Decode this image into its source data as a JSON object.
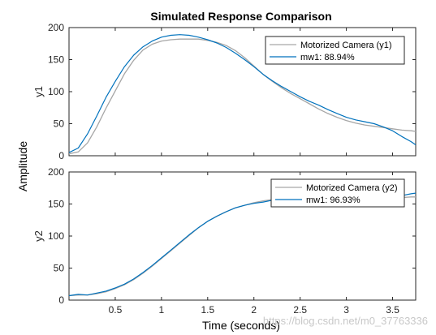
{
  "figure": {
    "title": "Simulated Response Comparison",
    "xlabel": "Time (seconds)",
    "ylabel_shared": "Amplitude",
    "watermark": "https://blog.csdn.net/m0_37763336"
  },
  "colors": {
    "measured": "#a6a6a6",
    "model": "#0072bd",
    "axes": "#262626",
    "background": "#ffffff"
  },
  "chart_data": [
    {
      "type": "line",
      "ylabel": "y1",
      "xlim": [
        0,
        3.75
      ],
      "ylim": [
        0,
        200
      ],
      "xticks": [
        "0.5",
        "1",
        "1.5",
        "2",
        "2.5",
        "3",
        "3.5"
      ],
      "yticks": [
        "0",
        "50",
        "100",
        "150",
        "200"
      ],
      "grid": false,
      "legend_placement": "top-right",
      "series": [
        {
          "name": "Motorized Camera (y1)",
          "color": "#a6a6a6",
          "x": [
            0,
            0.1,
            0.2,
            0.3,
            0.4,
            0.5,
            0.6,
            0.7,
            0.8,
            0.9,
            1.0,
            1.1,
            1.2,
            1.3,
            1.4,
            1.5,
            1.6,
            1.7,
            1.8,
            1.9,
            2.0,
            2.1,
            2.2,
            2.3,
            2.4,
            2.5,
            2.6,
            2.7,
            2.8,
            2.9,
            3.0,
            3.1,
            3.2,
            3.3,
            3.4,
            3.5,
            3.6,
            3.7,
            3.75
          ],
          "y": [
            3,
            6,
            20,
            45,
            74,
            101,
            128,
            149,
            165,
            174,
            179,
            181,
            182,
            182,
            182,
            180,
            177,
            172,
            164,
            153,
            140,
            127,
            116,
            106,
            97,
            89,
            81,
            73,
            66,
            60,
            55,
            51,
            48,
            46,
            44,
            42,
            40,
            39,
            38
          ]
        },
        {
          "name": "mw1: 88.94%",
          "color": "#0072bd",
          "x": [
            0,
            0.1,
            0.2,
            0.3,
            0.4,
            0.5,
            0.6,
            0.7,
            0.8,
            0.9,
            1.0,
            1.1,
            1.2,
            1.3,
            1.4,
            1.5,
            1.6,
            1.7,
            1.8,
            1.9,
            2.0,
            2.1,
            2.2,
            2.3,
            2.4,
            2.5,
            2.6,
            2.7,
            2.8,
            2.9,
            3.0,
            3.1,
            3.2,
            3.3,
            3.4,
            3.5,
            3.6,
            3.7,
            3.75
          ],
          "y": [
            5,
            12,
            34,
            62,
            91,
            116,
            139,
            157,
            170,
            179,
            185,
            188,
            189,
            188,
            185,
            181,
            176,
            169,
            160,
            150,
            139,
            127,
            117,
            108,
            100,
            92,
            85,
            79,
            72,
            66,
            60,
            56,
            53,
            50,
            45,
            39,
            30,
            22,
            17
          ]
        }
      ]
    },
    {
      "type": "line",
      "ylabel": "y2",
      "xlim": [
        0,
        3.75
      ],
      "ylim": [
        0,
        200
      ],
      "xticks": [
        "0.5",
        "1",
        "1.5",
        "2",
        "2.5",
        "3",
        "3.5"
      ],
      "yticks": [
        "0",
        "50",
        "100",
        "150",
        "200"
      ],
      "grid": false,
      "legend_placement": "top-right",
      "series": [
        {
          "name": "Motorized Camera (y2)",
          "color": "#a6a6a6",
          "x": [
            0,
            0.1,
            0.2,
            0.3,
            0.4,
            0.5,
            0.6,
            0.7,
            0.8,
            0.9,
            1.0,
            1.1,
            1.2,
            1.3,
            1.4,
            1.5,
            1.6,
            1.7,
            1.8,
            1.9,
            2.0,
            2.1,
            2.2,
            2.3,
            2.4,
            2.5,
            2.6,
            2.7,
            2.8,
            2.9,
            3.0,
            3.1,
            3.2,
            3.3,
            3.4,
            3.5,
            3.6,
            3.7,
            3.75
          ],
          "y": [
            7,
            8,
            8,
            10,
            13,
            18,
            24,
            32,
            42,
            53,
            65,
            77,
            89,
            101,
            113,
            123,
            131,
            138,
            144,
            148,
            152,
            155,
            157,
            158,
            159,
            160,
            160,
            161,
            161,
            161,
            161,
            161,
            161,
            160,
            160,
            160,
            160,
            161,
            161
          ]
        },
        {
          "name": "mw1: 96.93%",
          "color": "#0072bd",
          "x": [
            0,
            0.1,
            0.2,
            0.3,
            0.4,
            0.5,
            0.6,
            0.7,
            0.8,
            0.9,
            1.0,
            1.1,
            1.2,
            1.3,
            1.4,
            1.5,
            1.6,
            1.7,
            1.8,
            1.9,
            2.0,
            2.1,
            2.2,
            2.3,
            2.4,
            2.5,
            2.6,
            2.7,
            2.8,
            2.9,
            3.0,
            3.1,
            3.2,
            3.3,
            3.4,
            3.5,
            3.6,
            3.7,
            3.75
          ],
          "y": [
            7,
            9,
            8,
            11,
            14,
            19,
            25,
            33,
            43,
            54,
            66,
            78,
            90,
            102,
            113,
            123,
            131,
            138,
            144,
            148,
            151,
            153,
            156,
            159,
            160,
            161,
            159,
            157,
            155,
            154,
            154,
            155,
            157,
            158,
            159,
            160,
            163,
            166,
            167
          ]
        }
      ]
    }
  ]
}
